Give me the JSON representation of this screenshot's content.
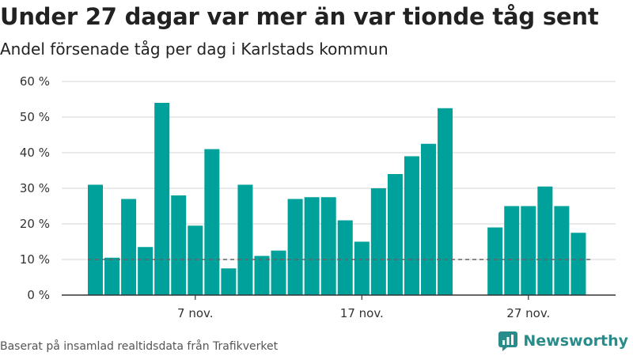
{
  "title": "Under 27 dagar var mer än var tionde tåg sent",
  "subtitle": "Andel försenade tåg per dag i Karlstads kommun",
  "source": "Baserat på insamlad realtidsdata från Trafikverket",
  "logo_text": "Newsworthy",
  "colors": {
    "bar": "#00a19a",
    "reference": "#666666",
    "grid": "#dddddd",
    "axis": "#333333",
    "logo": "#2a8c8a"
  },
  "chart_data": {
    "type": "bar",
    "x_start_date": "2023-11-01",
    "values": [
      31,
      10.5,
      27,
      13.5,
      54,
      28,
      19.5,
      41,
      7.5,
      31,
      11,
      12.5,
      27,
      27.5,
      27.5,
      21,
      15,
      30,
      34,
      39,
      42.5,
      52.5,
      null,
      null,
      19,
      25,
      25,
      30.5,
      25,
      17.5
    ],
    "xticks": [
      {
        "index": 6,
        "label": "7 nov."
      },
      {
        "index": 16,
        "label": "17 nov."
      },
      {
        "index": 26,
        "label": "27 nov."
      }
    ],
    "yticks": [
      "0 %",
      "10 %",
      "20 %",
      "30 %",
      "40 %",
      "50 %",
      "60 %"
    ],
    "ylim": [
      0,
      60
    ],
    "reference_line": 10,
    "grid": true
  }
}
